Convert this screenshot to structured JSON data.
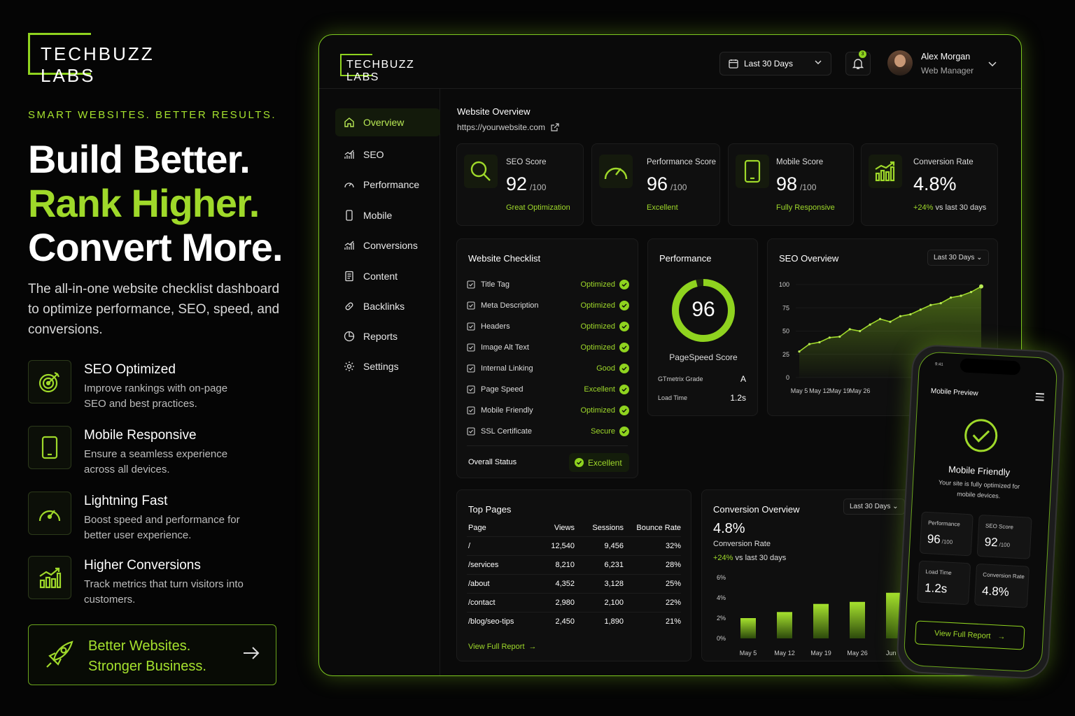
{
  "brand": {
    "name": "TECHBUZZ LABS",
    "tagline": "SMART WEBSITES. BETTER RESULTS.",
    "hero": [
      "Build Better.",
      "Rank Higher.",
      "Convert More."
    ],
    "description": "The all-in-one website checklist dashboard to optimize performance, SEO, speed, and conversions."
  },
  "features": [
    {
      "title": "SEO Optimized",
      "desc": "Improve rankings with on-page SEO and best practices.",
      "icon": "target-icon"
    },
    {
      "title": "Mobile Responsive",
      "desc": "Ensure a seamless experience across all devices.",
      "icon": "mobile-icon"
    },
    {
      "title": "Lightning Fast",
      "desc": "Boost speed and performance for better user experience.",
      "icon": "speedometer-icon"
    },
    {
      "title": "Higher Conversions",
      "desc": "Track metrics that turn visitors into customers.",
      "icon": "growth-chart-icon"
    }
  ],
  "cta": {
    "line1": "Better Websites.",
    "line2": "Stronger Business."
  },
  "header": {
    "logo": "TECHBUZZ LABS",
    "date_range": "Last 30 Days",
    "notifications": "3",
    "user_name": "Alex Morgan",
    "user_role": "Web Manager"
  },
  "nav": [
    "Overview",
    "SEO",
    "Performance",
    "Mobile",
    "Conversions",
    "Content",
    "Backlinks",
    "Reports",
    "Settings"
  ],
  "overview": {
    "title": "Website Overview",
    "url": "https://yourwebsite.com"
  },
  "stats": [
    {
      "label": "SEO Score",
      "value": "92",
      "suffix": "/100",
      "sub": "Great Optimization"
    },
    {
      "label": "Performance Score",
      "value": "96",
      "suffix": "/100",
      "sub": "Excellent"
    },
    {
      "label": "Mobile Score",
      "value": "98",
      "suffix": "/100",
      "sub": "Fully Responsive"
    },
    {
      "label": "Conversion Rate",
      "value": "4.8%",
      "sub_green": "+24%",
      "sub": "vs last 30 days"
    }
  ],
  "checklist": {
    "title": "Website Checklist",
    "items": [
      {
        "name": "Title Tag",
        "status": "Optimized"
      },
      {
        "name": "Meta Description",
        "status": "Optimized"
      },
      {
        "name": "Headers",
        "status": "Optimized"
      },
      {
        "name": "Image Alt Text",
        "status": "Optimized"
      },
      {
        "name": "Internal Linking",
        "status": "Good"
      },
      {
        "name": "Page Speed",
        "status": "Excellent"
      },
      {
        "name": "Mobile Friendly",
        "status": "Optimized"
      },
      {
        "name": "SSL Certificate",
        "status": "Secure"
      }
    ],
    "overall_label": "Overall Status",
    "overall_value": "Excellent"
  },
  "performance": {
    "title": "Performance",
    "score": "96",
    "score_label": "PageSpeed Score",
    "score_fraction": 0.96,
    "grade_label": "GTmetrix Grade",
    "grade": "A",
    "load_label": "Load Time",
    "load": "1.2s"
  },
  "seo_overview": {
    "title": "SEO Overview",
    "range": "Last 30 Days"
  },
  "top_pages": {
    "title": "Top Pages",
    "headers": [
      "Page",
      "Views",
      "Sessions",
      "Bounce Rate"
    ],
    "rows": [
      [
        "/",
        "12,540",
        "9,456",
        "32%"
      ],
      [
        "/services",
        "8,210",
        "6,231",
        "28%"
      ],
      [
        "/about",
        "4,352",
        "3,128",
        "25%"
      ],
      [
        "/contact",
        "2,980",
        "2,100",
        "22%"
      ],
      [
        "/blog/seo-tips",
        "2,450",
        "1,890",
        "21%"
      ]
    ],
    "link": "View Full Report"
  },
  "conversion": {
    "title": "Conversion Overview",
    "range": "Last 30 Days",
    "value": "4.8%",
    "label": "Conversion Rate",
    "change": "+24%",
    "change_text": "vs last 30 days"
  },
  "phone": {
    "title": "Mobile Preview",
    "heading": "Mobile Friendly",
    "text": "Your site is fully optimized for mobile devices.",
    "m1_label": "Performance",
    "m1_value": "96",
    "m1_suffix": "/100",
    "m2_label": "SEO Score",
    "m2_value": "92",
    "m2_suffix": "/100",
    "m3_label": "Load Time",
    "m3_value": "1.2s",
    "m4_label": "Conversion Rate",
    "m4_value": "4.8%",
    "button": "View Full Report",
    "time": "9:41"
  },
  "colors": {
    "accent": "#8fd31f",
    "background": "#050505"
  },
  "chart_data": [
    {
      "type": "area",
      "title": "SEO Overview",
      "x": [
        "May 5",
        "",
        "May 12",
        "",
        "May 19",
        "",
        "May 26",
        "",
        "",
        "",
        "",
        "",
        "",
        "",
        "",
        "",
        "",
        "",
        ""
      ],
      "x_ticks": [
        "May 5",
        "May 12",
        "May 19",
        "May 26"
      ],
      "y_ticks": [
        "0",
        "25",
        "50",
        "75",
        "100"
      ],
      "ylim": [
        0,
        100
      ],
      "values": [
        28,
        36,
        38,
        43,
        44,
        52,
        50,
        57,
        63,
        60,
        66,
        68,
        73,
        78,
        80,
        86,
        88,
        92,
        98
      ]
    },
    {
      "type": "bar",
      "title": "Conversion Overview",
      "categories": [
        "May 5",
        "May 12",
        "May 19",
        "May 26",
        "Jun 2"
      ],
      "values": [
        2.0,
        2.6,
        3.4,
        3.6,
        4.5
      ],
      "y_ticks": [
        "0%",
        "2%",
        "4%",
        "6%"
      ],
      "ylim": [
        0,
        6
      ]
    }
  ]
}
